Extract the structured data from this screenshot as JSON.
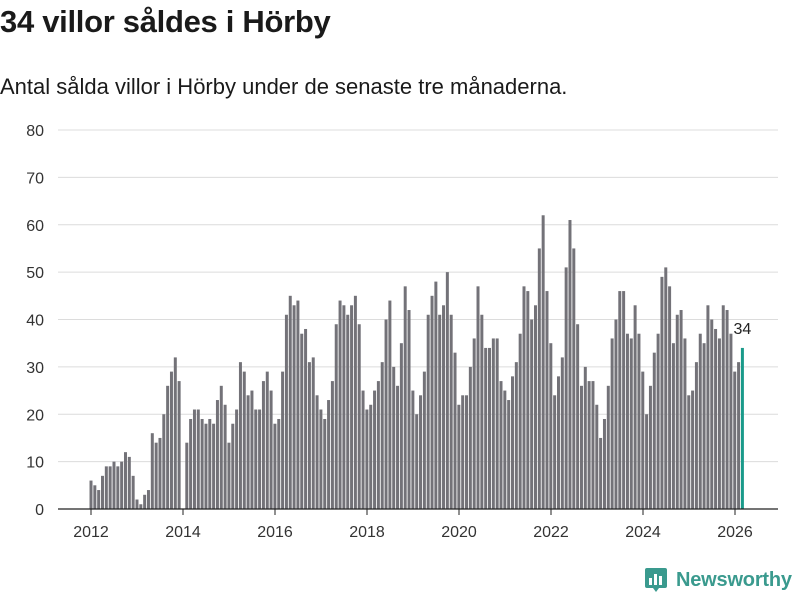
{
  "title": "34 villor såldes i Hörby",
  "subtitle": "Antal sålda villor i Hörby under de senaste tre månaderna.",
  "brand": {
    "name": "Newsworthy",
    "logo_icon": "newsworthy-chart-icon",
    "color": "#3a9a8e"
  },
  "chart_data": {
    "type": "bar",
    "title": "34 villor såldes i Hörby",
    "xlabel": "",
    "ylabel": "",
    "ylim": [
      0,
      80
    ],
    "yticks": [
      0,
      10,
      20,
      30,
      40,
      50,
      60,
      70,
      80
    ],
    "xticks": [
      2012,
      2014,
      2016,
      2018,
      2020,
      2022,
      2024,
      2026
    ],
    "x_start": 2012.0,
    "x_step": 0.0833,
    "grid": true,
    "bar_color": "#737278",
    "highlight_color": "#1a9a8a",
    "highlight_label": "34",
    "values": [
      6,
      5,
      4,
      7,
      9,
      9,
      10,
      9,
      10,
      12,
      11,
      7,
      2,
      1,
      3,
      4,
      16,
      14,
      15,
      20,
      26,
      29,
      32,
      27,
      0,
      14,
      19,
      21,
      21,
      19,
      18,
      19,
      18,
      23,
      26,
      22,
      14,
      18,
      21,
      31,
      29,
      24,
      25,
      21,
      21,
      27,
      29,
      25,
      18,
      19,
      29,
      41,
      45,
      43,
      44,
      37,
      38,
      31,
      32,
      24,
      21,
      19,
      23,
      27,
      39,
      44,
      43,
      41,
      43,
      45,
      39,
      25,
      21,
      22,
      25,
      27,
      31,
      40,
      44,
      30,
      26,
      35,
      47,
      42,
      25,
      20,
      24,
      29,
      41,
      45,
      48,
      41,
      43,
      50,
      41,
      33,
      22,
      24,
      24,
      30,
      36,
      47,
      41,
      34,
      34,
      36,
      36,
      27,
      25,
      23,
      28,
      31,
      37,
      47,
      46,
      40,
      43,
      55,
      62,
      46,
      35,
      24,
      28,
      32,
      51,
      61,
      55,
      39,
      26,
      30,
      27,
      27,
      22,
      15,
      19,
      26,
      36,
      40,
      46,
      46,
      37,
      36,
      43,
      37,
      29,
      20,
      26,
      33,
      37,
      49,
      51,
      47,
      35,
      41,
      42,
      36,
      24,
      25,
      31,
      37,
      35,
      43,
      40,
      38,
      36,
      43,
      42,
      37,
      29,
      31,
      34
    ]
  }
}
